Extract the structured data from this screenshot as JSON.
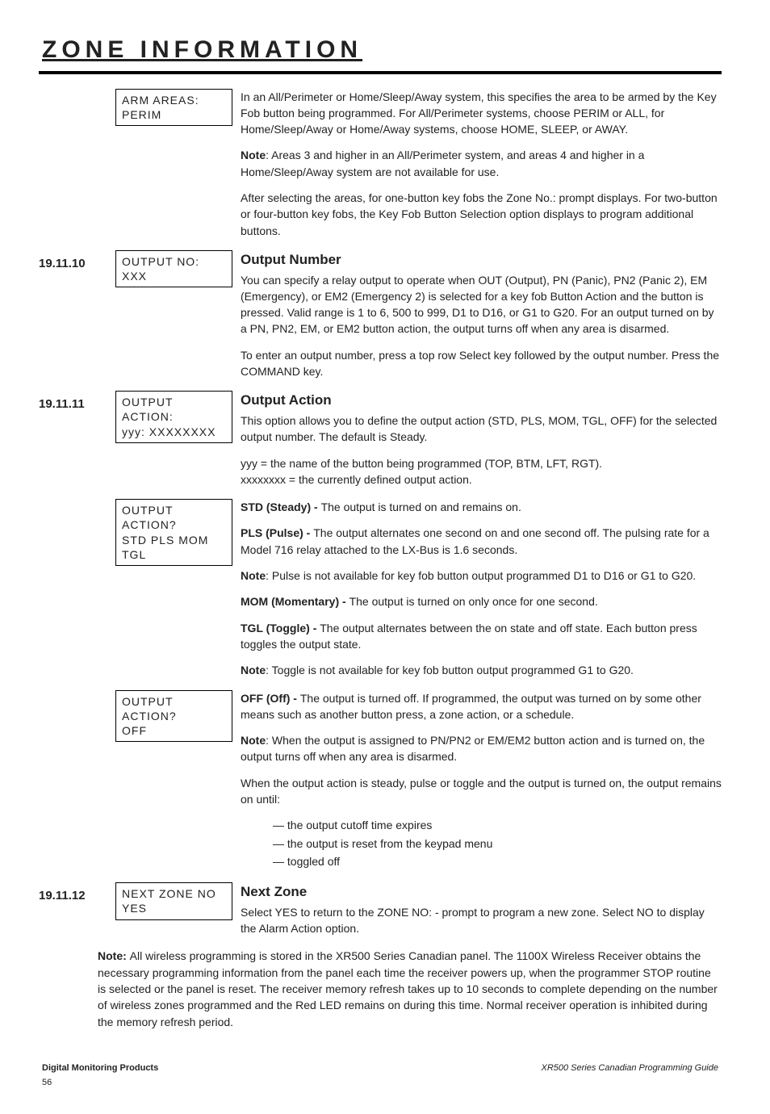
{
  "section_title": "ZONE INFORMATION",
  "rows": [
    {
      "num": "",
      "disp": "ARM AREAS:  PERIM",
      "heading": "",
      "body": [
        {
          "t": "p",
          "text": "In an All/Perimeter or Home/Sleep/Away system, this specifies the area to be armed by the Key Fob button being programmed.  For All/Perimeter systems, choose PERIM or ALL, for Home/Sleep/Away or Home/Away systems, choose HOME, SLEEP, or AWAY."
        },
        {
          "t": "p",
          "lead": "Note",
          "text": ": Areas 3 and higher in an All/Perimeter system, and areas 4 and higher in a Home/Sleep/Away system are not available for use."
        },
        {
          "t": "p",
          "text": "After selecting the areas, for one-button key fobs the Zone No.: prompt displays.  For two-button or four-button key fobs, the Key Fob Button Selection option displays to program additional buttons."
        }
      ]
    },
    {
      "num": "19.11.10",
      "disp": "OUTPUT NO: XXX",
      "heading": "Output Number",
      "body": [
        {
          "t": "p",
          "text": "You can specify a relay output to operate when OUT (Output), PN (Panic), PN2 (Panic 2), EM (Emergency), or EM2 (Emergency 2) is selected for a key fob Button Action and the button is pressed.  Valid range is 1 to 6, 500 to 999, D1 to D16, or G1 to G20.  For an output turned on by a PN, PN2, EM, or EM2 button action, the output turns off when any area is disarmed."
        },
        {
          "t": "p",
          "text": "To enter an output number, press a top row Select key followed by the output number.  Press the COMMAND key."
        }
      ]
    },
    {
      "num": "19.11.11",
      "disp": "OUTPUT ACTION:\nyyy: XXXXXXXX",
      "heading": "Output Action",
      "body": [
        {
          "t": "p",
          "text": "This option allows you to define the output action (STD, PLS, MOM, TGL, OFF) for the selected output number.  The default is Steady."
        },
        {
          "t": "p",
          "text": "yyy = the name of the button being programmed (TOP, BTM, LFT, RGT).\nxxxxxxxx = the currently defined output action."
        }
      ]
    },
    {
      "num": "",
      "disp": "OUTPUT ACTION?\nSTD  PLS  MOM  TGL",
      "heading": "",
      "body": [
        {
          "t": "p",
          "lead": "STD (Steady) - ",
          "text": "The output is turned on and remains on."
        },
        {
          "t": "p",
          "lead": "PLS (Pulse) - ",
          "text": "The output alternates one second on and one second off. The pulsing rate for a Model 716 relay attached to the LX-Bus is 1.6 seconds."
        },
        {
          "t": "p",
          "lead": "Note",
          "text": ": Pulse is not available for key fob button output programmed D1 to D16 or G1 to G20."
        },
        {
          "t": "p",
          "lead": "MOM (Momentary) - ",
          "text": "The output is turned on only once for one second."
        },
        {
          "t": "p",
          "lead": "TGL (Toggle) - ",
          "text": "The output alternates between the on state and off state.  Each button press toggles the output state."
        },
        {
          "t": "p",
          "lead": "Note",
          "text": ": Toggle is not available for key fob button output programmed G1 to G20."
        }
      ]
    },
    {
      "num": "",
      "disp": "OUTPUT ACTION?\nOFF",
      "heading": "",
      "body": [
        {
          "t": "p",
          "lead": "OFF (Off) - ",
          "text": "The output is turned off.  If programmed, the output was turned on by some other means such as another button press, a zone action, or a schedule."
        },
        {
          "t": "p",
          "lead": "Note",
          "text": ":  When the output is assigned to PN/PN2 or EM/EM2 button action and is turned on, the output turns off when any area is disarmed."
        },
        {
          "t": "p",
          "text": "When the output action is steady, pulse or toggle and the output is turned on, the output remains on until:"
        },
        {
          "t": "dash",
          "text": "the output cutoff time expires"
        },
        {
          "t": "dash",
          "text": "the output is reset from the keypad menu"
        },
        {
          "t": "dash",
          "text": "toggled off"
        }
      ]
    },
    {
      "num": "19.11.12",
      "disp": "NEXT ZONE  NO    YES",
      "heading": "Next Zone",
      "body": [
        {
          "t": "p",
          "text": "Select YES to return to the ZONE NO: - prompt to program a new zone.  Select NO to display the Alarm Action option."
        }
      ]
    }
  ],
  "bottom_note_lead": "Note:  ",
  "bottom_note": "All wireless programming is stored in the XR500 Series Canadian panel.  The 1100X Wireless Receiver obtains the necessary programming information from the panel each time the receiver powers up, when the programmer STOP routine is selected or the panel is reset.  The receiver memory refresh takes up to 10 seconds to complete depending on the number of wireless zones programmed and the Red LED remains on during this time.  Normal receiver operation is inhibited during the memory refresh period.",
  "footer_left": "Digital Monitoring Products",
  "footer_right": "XR500 Series Canadian Programming Guide",
  "page_num": "56"
}
